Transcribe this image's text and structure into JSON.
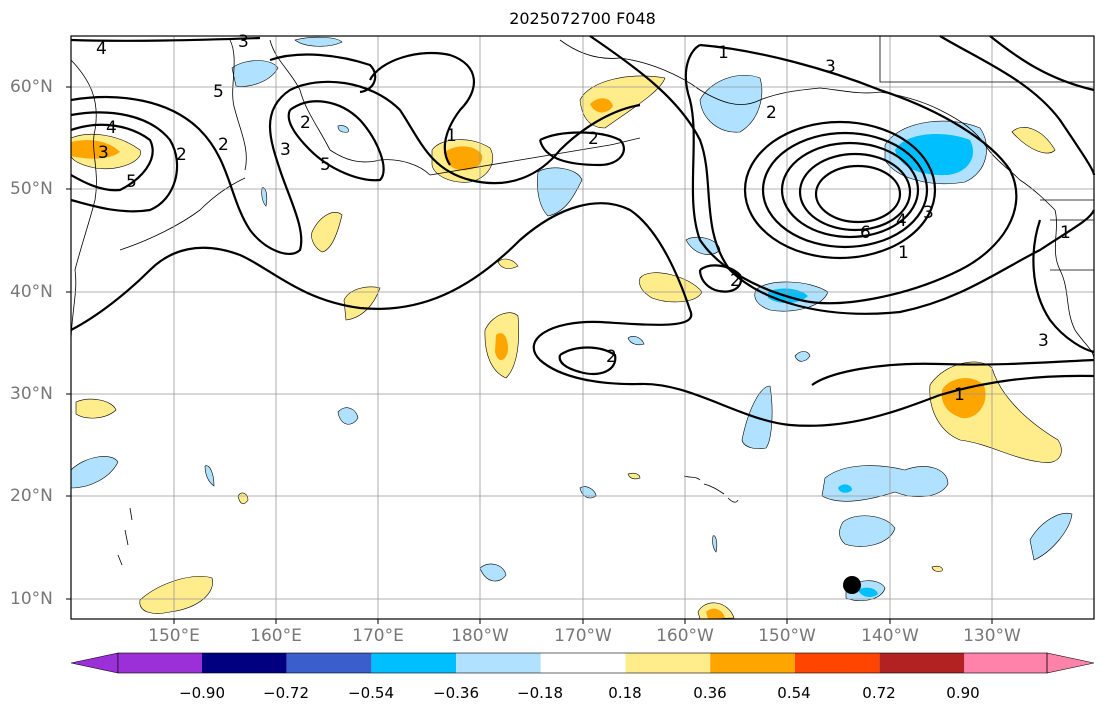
{
  "title": "2025072700 F048",
  "y_labels": [
    "60°N",
    "50°N",
    "40°N",
    "30°N",
    "20°N",
    "10°N"
  ],
  "x_labels": [
    "150°E",
    "160°E",
    "170°E",
    "180°W",
    "170°W",
    "160°W",
    "150°W",
    "140°W",
    "130°W"
  ],
  "colorbar": {
    "labels": [
      "−0.90",
      "−0.72",
      "−0.54",
      "−0.36",
      "−0.18",
      "0.18",
      "0.36",
      "0.54",
      "0.72",
      "0.90"
    ],
    "colors": [
      "#9b30d9",
      "#000080",
      "#3a5fcd",
      "#00bfff",
      "#b0e2ff",
      "#ffffff",
      "#ffec8b",
      "#ffa500",
      "#ff4500",
      "#b22222",
      "#ff82ab"
    ]
  },
  "contour_labels": [
    "4",
    "3",
    "5",
    "4",
    "3",
    "2",
    "5",
    "2",
    "3",
    "1",
    "2",
    "1",
    "3",
    "2",
    "5",
    "6",
    "4",
    "3",
    "1",
    "2",
    "2",
    "1",
    "3",
    "1",
    "2"
  ],
  "marker": "storm-position"
}
